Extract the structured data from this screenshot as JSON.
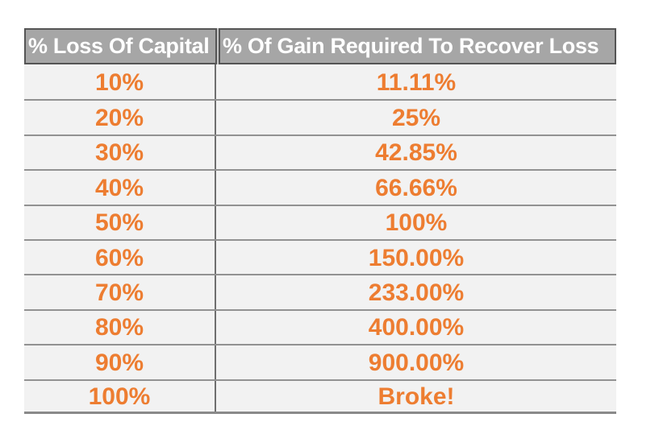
{
  "chart_data": {
    "type": "table",
    "columns": [
      "% Loss Of Capital",
      "% Of Gain Required To Recover Loss"
    ],
    "rows": [
      [
        "10%",
        "11.11%"
      ],
      [
        "20%",
        "25%"
      ],
      [
        "30%",
        "42.85%"
      ],
      [
        "40%",
        "66.66%"
      ],
      [
        "50%",
        "100%"
      ],
      [
        "60%",
        "150.00%"
      ],
      [
        "70%",
        "233.00%"
      ],
      [
        "80%",
        "400.00%"
      ],
      [
        "90%",
        "900.00%"
      ],
      [
        "100%",
        "Broke!"
      ]
    ]
  },
  "colors": {
    "page_background": "#ffffff",
    "header_background": "#a6a6a6",
    "header_text": "#ffffff",
    "header_border": "#555555",
    "row_background": "#f2f2f2",
    "row_divider": "#929292",
    "column_divider": "#6f6f6f",
    "bottom_border": "#8a8a8a",
    "value_text": "#ed7d31"
  }
}
